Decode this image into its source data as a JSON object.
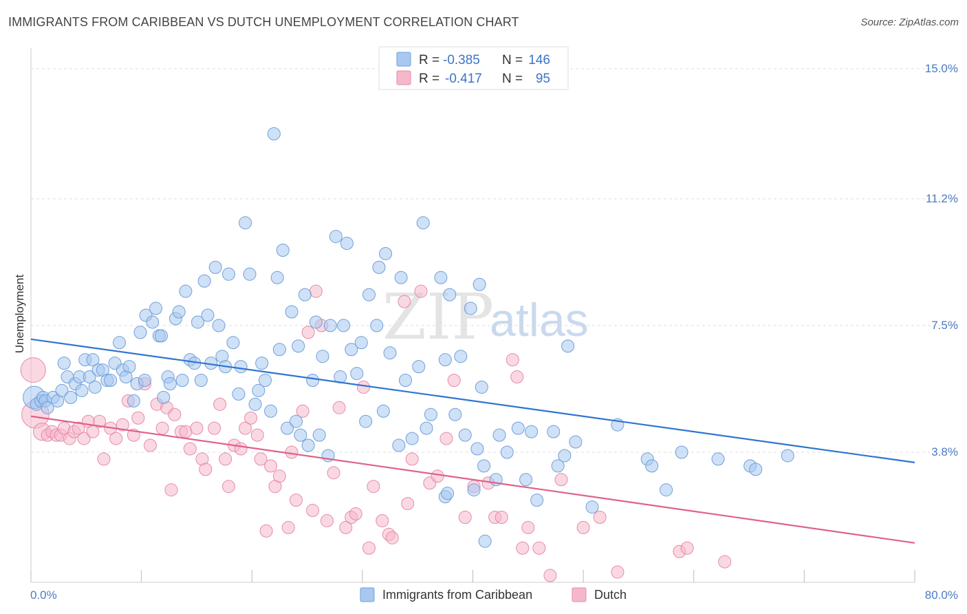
{
  "header": {
    "title": "IMMIGRANTS FROM CARIBBEAN VS DUTCH UNEMPLOYMENT CORRELATION CHART",
    "source": "Source: ZipAtlas.com"
  },
  "watermark": {
    "zip": "ZIP",
    "atlas": "atlas"
  },
  "colors": {
    "blue_fill": "#a8c8f0",
    "blue_stroke": "#6f9fd8",
    "blue_line": "#2f74d0",
    "pink_fill": "#f5b8cb",
    "pink_stroke": "#e68aa8",
    "pink_line": "#e0608c",
    "grid": "#dddddd",
    "tick_label": "#4a7bc4"
  },
  "legend": {
    "rows": [
      {
        "r_label": "R =",
        "r_value": "-0.385",
        "n_label": "N =",
        "n_value": "146"
      },
      {
        "r_label": "R =",
        "r_value": "-0.417",
        "n_label": "N =",
        "n_value": "95"
      }
    ]
  },
  "bottom_legend": [
    "Immigrants from Caribbean",
    "Dutch"
  ],
  "chart_data": {
    "type": "scatter",
    "title": "IMMIGRANTS FROM CARIBBEAN VS DUTCH UNEMPLOYMENT CORRELATION CHART",
    "xlabel": "",
    "ylabel": "Unemployment",
    "xlim": [
      0,
      80
    ],
    "ylim": [
      0,
      15.6
    ],
    "x_tick_labels": [
      "0.0%",
      "80.0%"
    ],
    "y_ticks": [
      3.8,
      7.5,
      11.2,
      15.0
    ],
    "y_tick_labels": [
      "3.8%",
      "7.5%",
      "11.2%",
      "15.0%"
    ],
    "grid": true,
    "legend_position": "top-center",
    "series": [
      {
        "name": "Immigrants from Caribbean",
        "color": "#a8c8f0",
        "R": -0.385,
        "N": 146,
        "trend": {
          "x": [
            0,
            80
          ],
          "y": [
            7.1,
            3.5
          ]
        },
        "points": [
          [
            0.3,
            5.4,
            1.8
          ],
          [
            0.5,
            5.2,
            1.0
          ],
          [
            0.9,
            5.3,
            1.0
          ],
          [
            1.1,
            5.4,
            1.0
          ],
          [
            1.3,
            5.3,
            1.0
          ],
          [
            1.5,
            5.1,
            1.0
          ],
          [
            2.0,
            5.4,
            1.0
          ],
          [
            2.4,
            5.3,
            1.0
          ],
          [
            2.8,
            5.6,
            1.0
          ],
          [
            3.0,
            6.4,
            1.0
          ],
          [
            3.3,
            6.0,
            1.0
          ],
          [
            3.6,
            5.4,
            1.0
          ],
          [
            4.0,
            5.8,
            1.0
          ],
          [
            4.4,
            6.0,
            1.0
          ],
          [
            4.6,
            5.6,
            1.0
          ],
          [
            4.9,
            6.5,
            1.0
          ],
          [
            5.3,
            6.0,
            1.0
          ],
          [
            5.6,
            6.5,
            1.0
          ],
          [
            5.8,
            5.7,
            1.0
          ],
          [
            6.1,
            6.2,
            1.0
          ],
          [
            6.5,
            6.2,
            1.0
          ],
          [
            6.9,
            5.9,
            1.0
          ],
          [
            7.2,
            5.9,
            1.0
          ],
          [
            7.6,
            6.4,
            1.0
          ],
          [
            8.0,
            7.0,
            1.0
          ],
          [
            8.3,
            6.2,
            1.0
          ],
          [
            8.6,
            6.0,
            1.0
          ],
          [
            8.9,
            6.3,
            1.0
          ],
          [
            9.3,
            5.3,
            1.0
          ],
          [
            9.6,
            5.8,
            1.0
          ],
          [
            9.9,
            7.3,
            1.0
          ],
          [
            10.3,
            5.9,
            1.0
          ],
          [
            10.4,
            7.8,
            1.0
          ],
          [
            11.0,
            7.6,
            1.0
          ],
          [
            11.3,
            8.0,
            1.0
          ],
          [
            11.6,
            7.2,
            1.0
          ],
          [
            11.8,
            7.2,
            1.0
          ],
          [
            12.0,
            5.4,
            1.0
          ],
          [
            12.4,
            6.0,
            1.0
          ],
          [
            12.6,
            5.8,
            1.0
          ],
          [
            13.1,
            7.7,
            1.0
          ],
          [
            13.4,
            7.9,
            1.0
          ],
          [
            13.7,
            5.9,
            1.0
          ],
          [
            14.0,
            8.5,
            1.0
          ],
          [
            14.4,
            6.5,
            1.0
          ],
          [
            14.8,
            6.4,
            1.0
          ],
          [
            15.1,
            7.6,
            1.0
          ],
          [
            15.4,
            5.9,
            1.0
          ],
          [
            15.7,
            8.8,
            1.0
          ],
          [
            16.0,
            7.8,
            1.0
          ],
          [
            16.3,
            6.4,
            1.0
          ],
          [
            16.7,
            9.2,
            1.0
          ],
          [
            17.0,
            7.5,
            1.0
          ],
          [
            17.3,
            6.6,
            1.0
          ],
          [
            17.6,
            6.3,
            1.0
          ],
          [
            17.9,
            9.0,
            1.0
          ],
          [
            18.3,
            7.0,
            1.0
          ],
          [
            18.8,
            5.5,
            1.0
          ],
          [
            19.0,
            6.3,
            1.0
          ],
          [
            19.4,
            10.5,
            1.0
          ],
          [
            19.8,
            9.0,
            1.0
          ],
          [
            20.3,
            5.2,
            1.0
          ],
          [
            20.6,
            5.6,
            1.0
          ],
          [
            20.9,
            6.4,
            1.0
          ],
          [
            21.2,
            5.9,
            1.0
          ],
          [
            21.7,
            5.0,
            1.0
          ],
          [
            22.0,
            13.1,
            1.0
          ],
          [
            22.3,
            8.9,
            1.0
          ],
          [
            22.5,
            6.8,
            1.0
          ],
          [
            22.8,
            9.7,
            1.0
          ],
          [
            23.2,
            4.5,
            1.0
          ],
          [
            23.6,
            7.9,
            1.0
          ],
          [
            24.0,
            4.7,
            1.0
          ],
          [
            24.2,
            6.9,
            1.0
          ],
          [
            24.4,
            4.3,
            1.0
          ],
          [
            24.8,
            8.4,
            1.0
          ],
          [
            25.1,
            4.0,
            1.0
          ],
          [
            25.5,
            5.9,
            1.0
          ],
          [
            25.8,
            7.6,
            1.0
          ],
          [
            26.1,
            4.3,
            1.0
          ],
          [
            26.4,
            6.6,
            1.0
          ],
          [
            26.9,
            3.7,
            1.0
          ],
          [
            27.1,
            7.5,
            1.0
          ],
          [
            27.6,
            10.1,
            1.0
          ],
          [
            28.0,
            6.0,
            1.0
          ],
          [
            28.3,
            7.5,
            1.0
          ],
          [
            28.6,
            9.9,
            1.0
          ],
          [
            29.0,
            6.8,
            1.0
          ],
          [
            29.5,
            6.1,
            1.0
          ],
          [
            29.9,
            7.0,
            1.0
          ],
          [
            30.3,
            4.7,
            1.0
          ],
          [
            30.6,
            8.4,
            1.0
          ],
          [
            31.3,
            7.5,
            1.0
          ],
          [
            31.5,
            9.2,
            1.0
          ],
          [
            31.9,
            5.0,
            1.0
          ],
          [
            32.1,
            9.6,
            1.0
          ],
          [
            32.5,
            6.7,
            1.0
          ],
          [
            33.3,
            4.0,
            1.0
          ],
          [
            33.5,
            8.9,
            1.0
          ],
          [
            33.9,
            5.9,
            1.0
          ],
          [
            34.5,
            4.2,
            1.0
          ],
          [
            35.1,
            6.3,
            1.0
          ],
          [
            35.5,
            10.5,
            1.0
          ],
          [
            35.8,
            4.5,
            1.0
          ],
          [
            36.2,
            4.9,
            1.0
          ],
          [
            37.1,
            8.9,
            1.0
          ],
          [
            37.5,
            6.5,
            1.0
          ],
          [
            37.5,
            2.5,
            1.0
          ],
          [
            37.7,
            2.6,
            1.0
          ],
          [
            37.9,
            8.4,
            1.0
          ],
          [
            38.4,
            4.9,
            1.0
          ],
          [
            38.9,
            6.6,
            1.0
          ],
          [
            39.3,
            4.3,
            1.0
          ],
          [
            39.8,
            8.0,
            1.0
          ],
          [
            40.1,
            2.7,
            1.0
          ],
          [
            40.4,
            3.9,
            1.0
          ],
          [
            40.6,
            8.7,
            1.0
          ],
          [
            40.8,
            5.7,
            1.0
          ],
          [
            41.0,
            3.4,
            1.0
          ],
          [
            41.1,
            1.2,
            1.0
          ],
          [
            42.1,
            3.0,
            1.0
          ],
          [
            42.4,
            4.3,
            1.0
          ],
          [
            43.1,
            3.8,
            1.0
          ],
          [
            44.1,
            4.5,
            1.0
          ],
          [
            44.8,
            3.0,
            1.0
          ],
          [
            45.3,
            4.4,
            1.0
          ],
          [
            45.8,
            2.4,
            1.0
          ],
          [
            47.3,
            4.4,
            1.0
          ],
          [
            47.7,
            3.4,
            1.0
          ],
          [
            48.3,
            3.7,
            1.0
          ],
          [
            48.6,
            6.9,
            1.0
          ],
          [
            49.3,
            4.1,
            1.0
          ],
          [
            50.8,
            2.2,
            1.0
          ],
          [
            53.1,
            4.6,
            1.0
          ],
          [
            55.8,
            3.6,
            1.0
          ],
          [
            56.2,
            3.4,
            1.0
          ],
          [
            57.5,
            2.7,
            1.0
          ],
          [
            58.9,
            3.8,
            1.0
          ],
          [
            62.2,
            3.6,
            1.0
          ],
          [
            65.1,
            3.4,
            1.0
          ],
          [
            65.6,
            3.3,
            1.0
          ],
          [
            68.5,
            3.7,
            1.0
          ]
        ]
      },
      {
        "name": "Dutch",
        "color": "#f5b8cb",
        "R": -0.417,
        "N": 95,
        "trend": {
          "x": [
            0,
            80
          ],
          "y": [
            4.85,
            1.15
          ]
        },
        "points": [
          [
            0.2,
            6.2,
            2.0
          ],
          [
            0.4,
            4.9,
            2.2
          ],
          [
            1.0,
            4.4,
            1.4
          ],
          [
            1.5,
            4.3,
            1.0
          ],
          [
            1.9,
            4.4,
            1.0
          ],
          [
            2.3,
            4.3,
            1.0
          ],
          [
            2.7,
            4.3,
            1.0
          ],
          [
            3.0,
            4.5,
            1.0
          ],
          [
            3.5,
            4.2,
            1.0
          ],
          [
            3.9,
            4.4,
            1.0
          ],
          [
            4.3,
            4.5,
            1.0
          ],
          [
            4.8,
            4.2,
            1.0
          ],
          [
            5.2,
            4.7,
            1.0
          ],
          [
            5.6,
            4.4,
            1.0
          ],
          [
            6.2,
            4.7,
            1.0
          ],
          [
            6.6,
            3.6,
            1.0
          ],
          [
            7.2,
            4.5,
            1.0
          ],
          [
            7.7,
            4.2,
            1.0
          ],
          [
            8.3,
            4.6,
            1.0
          ],
          [
            8.8,
            5.3,
            1.0
          ],
          [
            9.3,
            4.3,
            1.0
          ],
          [
            9.7,
            4.8,
            1.0
          ],
          [
            10.3,
            5.8,
            1.0
          ],
          [
            10.8,
            4.0,
            1.0
          ],
          [
            11.4,
            5.2,
            1.0
          ],
          [
            11.9,
            4.5,
            1.0
          ],
          [
            12.3,
            5.1,
            1.0
          ],
          [
            12.7,
            2.7,
            1.0
          ],
          [
            13.0,
            4.9,
            1.0
          ],
          [
            13.6,
            4.4,
            1.0
          ],
          [
            14.0,
            4.4,
            1.0
          ],
          [
            14.4,
            3.9,
            1.0
          ],
          [
            15.0,
            4.5,
            1.0
          ],
          [
            15.5,
            3.6,
            1.0
          ],
          [
            15.8,
            3.3,
            1.0
          ],
          [
            16.6,
            4.5,
            1.0
          ],
          [
            17.1,
            5.2,
            1.0
          ],
          [
            17.6,
            3.6,
            1.0
          ],
          [
            17.9,
            2.8,
            1.0
          ],
          [
            18.4,
            4.0,
            1.0
          ],
          [
            19.0,
            3.9,
            1.0
          ],
          [
            19.4,
            4.5,
            1.0
          ],
          [
            19.9,
            4.8,
            1.0
          ],
          [
            20.5,
            4.3,
            1.0
          ],
          [
            20.8,
            3.6,
            1.0
          ],
          [
            21.3,
            1.5,
            1.0
          ],
          [
            21.7,
            3.4,
            1.0
          ],
          [
            22.1,
            2.8,
            1.0
          ],
          [
            22.5,
            3.1,
            1.0
          ],
          [
            23.3,
            1.6,
            1.0
          ],
          [
            23.6,
            3.8,
            1.0
          ],
          [
            24.0,
            2.4,
            1.0
          ],
          [
            24.6,
            5.0,
            1.0
          ],
          [
            25.1,
            7.3,
            1.0
          ],
          [
            25.5,
            2.1,
            1.0
          ],
          [
            25.8,
            8.5,
            1.0
          ],
          [
            26.3,
            7.5,
            1.0
          ],
          [
            26.8,
            1.8,
            1.0
          ],
          [
            27.4,
            3.2,
            1.0
          ],
          [
            27.9,
            5.1,
            1.0
          ],
          [
            28.5,
            1.6,
            1.0
          ],
          [
            29.0,
            1.9,
            1.0
          ],
          [
            29.4,
            2.0,
            1.0
          ],
          [
            30.1,
            5.7,
            1.0
          ],
          [
            30.6,
            1.0,
            1.0
          ],
          [
            31.0,
            2.8,
            1.0
          ],
          [
            31.8,
            1.8,
            1.0
          ],
          [
            32.4,
            1.4,
            1.0
          ],
          [
            32.7,
            1.3,
            1.0
          ],
          [
            33.8,
            8.2,
            1.0
          ],
          [
            34.1,
            2.3,
            1.0
          ],
          [
            34.5,
            3.6,
            1.0
          ],
          [
            35.3,
            8.5,
            1.0
          ],
          [
            36.1,
            2.9,
            1.0
          ],
          [
            36.8,
            3.1,
            1.0
          ],
          [
            37.6,
            4.2,
            1.0
          ],
          [
            38.3,
            5.9,
            1.0
          ],
          [
            39.3,
            1.9,
            1.0
          ],
          [
            40.1,
            2.8,
            1.0
          ],
          [
            41.4,
            2.9,
            1.0
          ],
          [
            42.0,
            1.9,
            1.0
          ],
          [
            42.6,
            1.9,
            1.0
          ],
          [
            43.6,
            6.5,
            1.0
          ],
          [
            44.0,
            6.0,
            1.0
          ],
          [
            44.5,
            1.0,
            1.0
          ],
          [
            45.0,
            1.6,
            1.0
          ],
          [
            46.0,
            1.0,
            1.0
          ],
          [
            47.0,
            0.2,
            1.0
          ],
          [
            48.0,
            3.0,
            1.0
          ],
          [
            50.0,
            1.6,
            1.0
          ],
          [
            51.5,
            1.9,
            1.0
          ],
          [
            53.1,
            0.3,
            1.0
          ],
          [
            58.7,
            0.9,
            1.0
          ],
          [
            59.4,
            1.0,
            1.0
          ],
          [
            62.8,
            0.6,
            1.0
          ]
        ]
      }
    ]
  }
}
